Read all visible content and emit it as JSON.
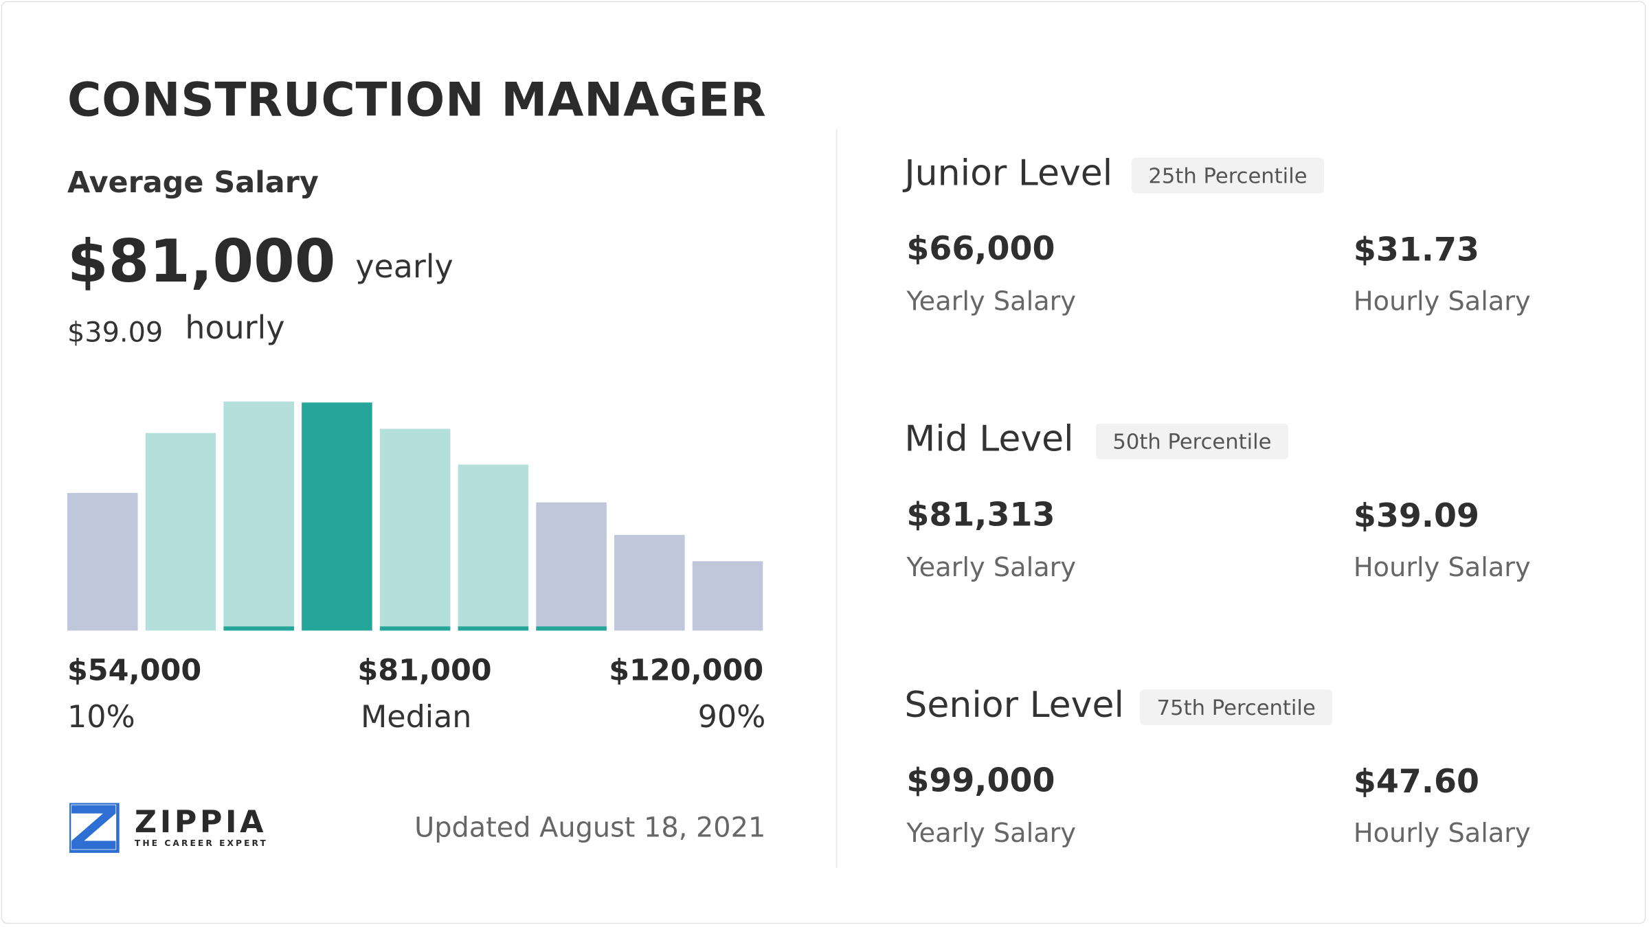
{
  "header": {
    "title": "CONSTRUCTION MANAGER"
  },
  "average": {
    "label": "Average Salary",
    "yearly_value": "$81,000",
    "yearly_unit": "yearly",
    "hourly_value": "$39.09",
    "hourly_unit": "hourly"
  },
  "histogram": {
    "type": "bar",
    "values": [
      131,
      188,
      218,
      217,
      192,
      158,
      122,
      91,
      66
    ],
    "colors": [
      "#c0c7db",
      "#b5dfdb",
      "#b5dfdb",
      "#26a69a",
      "#b5dfdb",
      "#b5dfdb",
      "#c0c7db",
      "#c0c7db",
      "#c0c7db"
    ],
    "underlined": [
      false,
      false,
      true,
      false,
      true,
      true,
      true,
      false,
      false
    ],
    "underline_color": "#26a69a",
    "ylim": [
      0,
      220
    ],
    "labels": [
      {
        "value": "$54,000",
        "caption": "10%"
      },
      {
        "value": "$81,000",
        "caption": "Median"
      },
      {
        "value": "$120,000",
        "caption": "90%"
      }
    ]
  },
  "footer": {
    "brand": "ZIPPIA",
    "tagline": "THE CAREER EXPERT",
    "updated": "Updated August 18, 2021"
  },
  "levels": [
    {
      "name": "Junior Level",
      "percentile": "25th Percentile",
      "yearly": "$66,000",
      "yearly_label": "Yearly Salary",
      "hourly": "$31.73",
      "hourly_label": "Hourly Salary"
    },
    {
      "name": "Mid Level",
      "percentile": "50th Percentile",
      "yearly": "$81,313",
      "yearly_label": "Yearly Salary",
      "hourly": "$39.09",
      "hourly_label": "Hourly Salary"
    },
    {
      "name": "Senior Level",
      "percentile": "75th Percentile",
      "yearly": "$99,000",
      "yearly_label": "Yearly Salary",
      "hourly": "$47.60",
      "hourly_label": "Hourly Salary"
    }
  ]
}
